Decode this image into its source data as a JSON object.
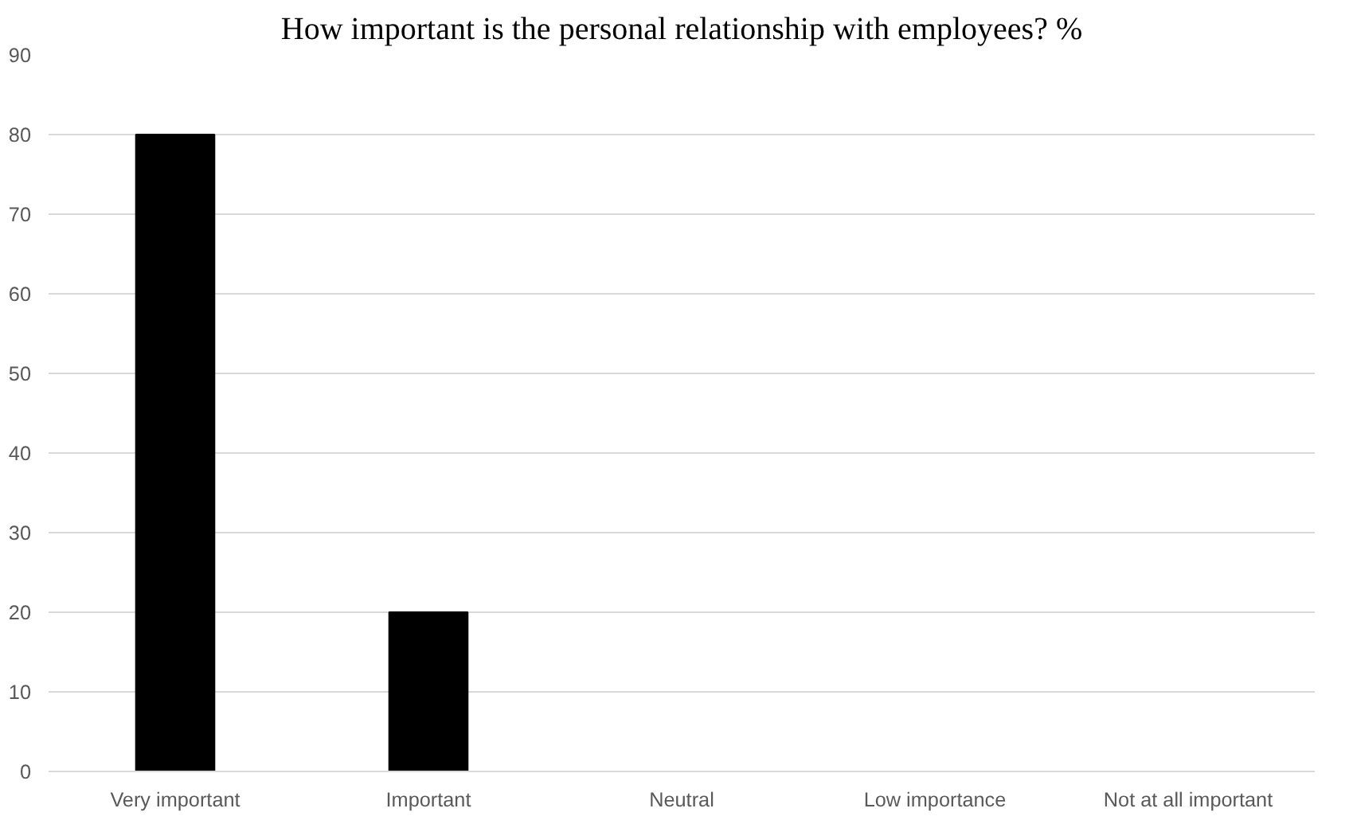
{
  "chart_data": {
    "type": "bar",
    "title": "How important is the personal relationship with employees? %",
    "categories": [
      "Very important",
      "Important",
      "Neutral",
      "Low importance",
      "Not at all important"
    ],
    "values": [
      80,
      20,
      0,
      0,
      0
    ],
    "color": "#000000",
    "ylim": [
      0,
      90
    ],
    "yticks": [
      0,
      10,
      20,
      30,
      40,
      50,
      60,
      70,
      80,
      90
    ],
    "grid": "y"
  }
}
